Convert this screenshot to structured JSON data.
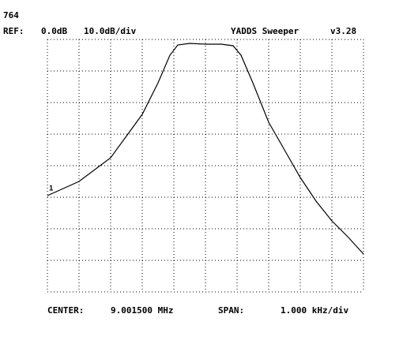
{
  "header": {
    "id": "764",
    "ref_label": "REF:",
    "ref_level": "0.0dB",
    "scale": "10.0dB/div",
    "title": "YADDS Sweeper",
    "version": "v3.28"
  },
  "footer": {
    "center_label": "CENTER:",
    "center": "9.001500 MHz",
    "span_label": "SPAN:",
    "span": "1.000 kHz/div"
  },
  "chart_data": {
    "type": "line",
    "marker_label": "1",
    "x": [
      8.9965,
      8.9975,
      8.9985,
      8.9995,
      9.0,
      9.000375,
      9.000625,
      9.001,
      9.0015,
      9.002,
      9.002375,
      9.002625,
      9.003,
      9.0035,
      9.004,
      9.0045,
      9.005,
      9.0055,
      9.006,
      9.0065
    ],
    "series": [
      {
        "color": "#000000",
        "values": [
          -49.5,
          -45,
          -37.5,
          -23.75,
          -13.75,
          -5,
          -1.75,
          -1.25,
          -1.5,
          -1.5,
          -2,
          -5,
          -13.75,
          -26.25,
          -35,
          -43.75,
          -51.25,
          -57.5,
          -62.5,
          -68
        ]
      }
    ],
    "xlim": [
      8.9965,
      9.0065
    ],
    "ylim": [
      -80,
      0
    ],
    "xticks": [
      8.9965,
      8.9975,
      8.9985,
      8.9995,
      9.0005,
      9.0015,
      9.0025,
      9.0035,
      9.0045,
      9.0055,
      9.0065
    ],
    "yticks": [
      -80,
      -70,
      -60,
      -50,
      -40,
      -30,
      -20,
      -10,
      0
    ],
    "grid": true
  }
}
